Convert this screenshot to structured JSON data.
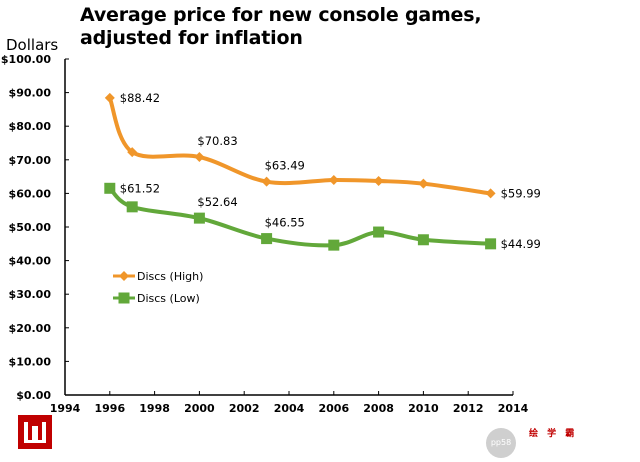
{
  "chart_data": {
    "type": "line",
    "title": "Average price for new console games, adjusted for inflation",
    "title_lines": [
      "Average price for new console games,",
      "adjusted for inflation"
    ],
    "ylabel": "Dollars",
    "xlabel": "",
    "xlim": [
      1994,
      2014
    ],
    "ylim": [
      0,
      100
    ],
    "x_ticks": [
      "1994",
      "1996",
      "1998",
      "2000",
      "2002",
      "2004",
      "2006",
      "2008",
      "2010",
      "2012",
      "2014"
    ],
    "y_ticks": [
      "$0.00",
      "$10.00",
      "$20.00",
      "$30.00",
      "$40.00",
      "$50.00",
      "$60.00",
      "$70.00",
      "$80.00",
      "$90.00",
      "$100.00"
    ],
    "grid": false,
    "legend_position": "center-left",
    "series": [
      {
        "name": "Discs (High)",
        "color": "#f0962a",
        "marker": "diamond",
        "x": [
          1996,
          1997,
          2000,
          2003,
          2006,
          2008,
          2010,
          2013
        ],
        "values": [
          88.42,
          72.3,
          70.83,
          63.49,
          64.0,
          63.7,
          62.9,
          59.99
        ],
        "labels": [
          "$88.42",
          null,
          "$70.83",
          "$63.49",
          null,
          null,
          null,
          "$59.99"
        ]
      },
      {
        "name": "Discs (Low)",
        "color": "#62a83a",
        "marker": "square",
        "x": [
          1996,
          1997,
          2000,
          2003,
          2006,
          2008,
          2010,
          2013
        ],
        "values": [
          61.52,
          56.0,
          52.64,
          46.55,
          44.6,
          48.5,
          46.2,
          44.99
        ],
        "labels": [
          "$61.52",
          null,
          "$52.64",
          "$46.55",
          null,
          null,
          null,
          "$44.99"
        ]
      }
    ]
  },
  "watermark": {
    "circle_text": "pp58",
    "text": "绘 学 霸"
  }
}
